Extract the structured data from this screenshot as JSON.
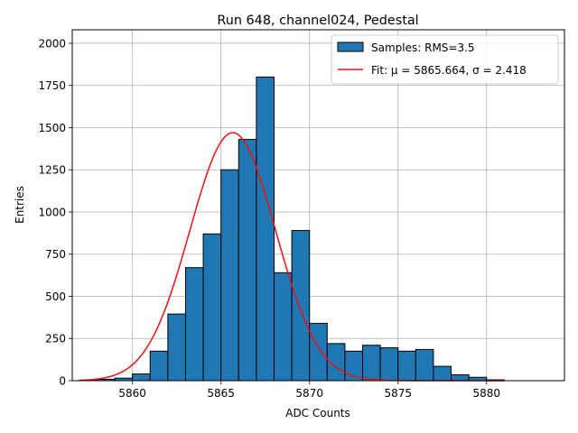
{
  "chart_data": {
    "type": "bar",
    "title": "Run 648, channel024, Pedestal",
    "xlabel": "ADC Counts",
    "ylabel": "Entries",
    "xlim": [
      5856.6,
      5884.4
    ],
    "ylim": [
      0,
      2080
    ],
    "xticks": [
      5860,
      5865,
      5870,
      5875,
      5880
    ],
    "yticks": [
      0,
      250,
      500,
      750,
      1000,
      1250,
      1500,
      1750,
      2000
    ],
    "grid": true,
    "legend_position": "top-right",
    "histogram": {
      "name": "Samples: RMS=3.5",
      "bin_width": 1,
      "bin_edges_start": 5857,
      "counts": [
        3,
        8,
        15,
        40,
        175,
        395,
        670,
        870,
        1250,
        1430,
        1800,
        640,
        890,
        340,
        220,
        175,
        210,
        195,
        175,
        185,
        85,
        35,
        20,
        5
      ],
      "color": "#1f77b4"
    },
    "fit": {
      "name": "Fit: μ = 5865.664, σ = 2.418",
      "mu": 5865.664,
      "sigma": 2.418,
      "amplitude": 1470,
      "x_range": [
        5857,
        5881
      ],
      "color": "#ee1111"
    }
  }
}
